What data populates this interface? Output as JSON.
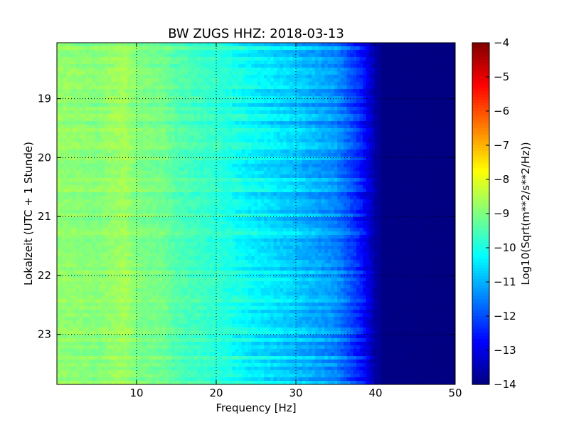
{
  "chart_data": {
    "type": "heatmap",
    "title": "BW ZUGS HHZ: 2018-03-13",
    "xlabel": "Frequency [Hz]",
    "ylabel": "Lokalzeit (UTC + 1 Stunde)",
    "xlim": [
      0,
      50
    ],
    "ylim": [
      18.05,
      23.85
    ],
    "y_inverted": true,
    "x_ticks": [
      10,
      20,
      30,
      40,
      50
    ],
    "y_ticks": [
      19,
      20,
      21,
      22,
      23
    ],
    "grid": true,
    "colormap": "jet",
    "colorbar": {
      "label": "Log10(Sqrt(m**2/s**2/Hz))",
      "min": -14,
      "max": -4,
      "ticks": [
        -14,
        -13,
        -12,
        -11,
        -10,
        -9,
        -8,
        -7,
        -6,
        -5,
        -4
      ]
    },
    "frequency_profile": {
      "frequency_hz": [
        0,
        5,
        8.5,
        10,
        13.5,
        15,
        20,
        25,
        30,
        35,
        38,
        40,
        41,
        50
      ],
      "log10_amplitude": [
        -8.8,
        -8.95,
        -8.65,
        -9.0,
        -9.15,
        -9.45,
        -9.8,
        -10.35,
        -10.8,
        -11.35,
        -12.4,
        -13.6,
        -13.95,
        -14.0
      ]
    }
  }
}
